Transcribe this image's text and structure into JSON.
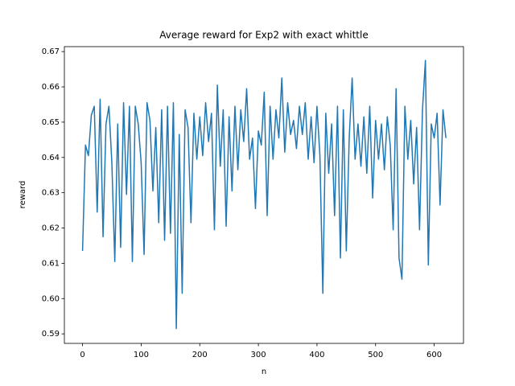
{
  "chart_data": {
    "type": "line",
    "title": "Average reward for Exp2 with exact whittle",
    "xlabel": "n",
    "ylabel": "reward",
    "x": [
      0,
      5,
      10,
      15,
      20,
      25,
      30,
      35,
      40,
      45,
      50,
      55,
      60,
      65,
      70,
      75,
      80,
      85,
      90,
      95,
      100,
      105,
      110,
      115,
      120,
      125,
      130,
      135,
      140,
      145,
      150,
      155,
      160,
      165,
      170,
      175,
      180,
      185,
      190,
      195,
      200,
      205,
      210,
      215,
      220,
      225,
      230,
      235,
      240,
      245,
      250,
      255,
      260,
      265,
      270,
      275,
      280,
      285,
      290,
      295,
      300,
      305,
      310,
      315,
      320,
      325,
      330,
      335,
      340,
      345,
      350,
      355,
      360,
      365,
      370,
      375,
      380,
      385,
      390,
      395,
      400,
      405,
      410,
      415,
      420,
      425,
      430,
      435,
      440,
      445,
      450,
      455,
      460,
      465,
      470,
      475,
      480,
      485,
      490,
      495,
      500,
      505,
      510,
      515,
      520,
      525,
      530,
      535,
      540,
      545,
      550,
      555,
      560,
      565,
      570,
      575,
      580,
      585,
      590,
      595,
      600,
      605,
      610,
      615,
      620
    ],
    "series": [
      {
        "name": "reward",
        "color": "#1f77b4",
        "values": [
          0.6135,
          0.6435,
          0.6405,
          0.652,
          0.6545,
          0.6245,
          0.6565,
          0.6175,
          0.6495,
          0.6545,
          0.6385,
          0.6105,
          0.6495,
          0.6145,
          0.6555,
          0.6295,
          0.6545,
          0.6105,
          0.6545,
          0.6495,
          0.6385,
          0.6125,
          0.6555,
          0.6505,
          0.6305,
          0.6485,
          0.6215,
          0.6535,
          0.6165,
          0.6545,
          0.6185,
          0.6555,
          0.5915,
          0.6465,
          0.6015,
          0.6535,
          0.6485,
          0.6215,
          0.6525,
          0.6395,
          0.6515,
          0.6405,
          0.6555,
          0.6445,
          0.6525,
          0.6195,
          0.6605,
          0.6375,
          0.6535,
          0.6205,
          0.6515,
          0.6305,
          0.6545,
          0.6365,
          0.6535,
          0.6445,
          0.6595,
          0.6395,
          0.6455,
          0.6255,
          0.6475,
          0.6435,
          0.6585,
          0.6235,
          0.6545,
          0.6395,
          0.6535,
          0.6455,
          0.6625,
          0.6415,
          0.6555,
          0.6465,
          0.6505,
          0.6425,
          0.6545,
          0.6465,
          0.6555,
          0.6395,
          0.6515,
          0.6385,
          0.6545,
          0.6405,
          0.6015,
          0.6525,
          0.6355,
          0.6495,
          0.6235,
          0.6545,
          0.6115,
          0.6535,
          0.6135,
          0.6455,
          0.6625,
          0.6395,
          0.6495,
          0.6375,
          0.6515,
          0.6355,
          0.6545,
          0.6285,
          0.6505,
          0.6395,
          0.6495,
          0.6365,
          0.6515,
          0.6435,
          0.6195,
          0.6595,
          0.6115,
          0.6055,
          0.6545,
          0.6395,
          0.6505,
          0.6325,
          0.6485,
          0.6195,
          0.6535,
          0.6675,
          0.6095,
          0.6495,
          0.6455,
          0.6525,
          0.6265,
          0.6535,
          0.6455
        ]
      }
    ],
    "xlim": [
      -31,
      650
    ],
    "ylim": [
      0.5873,
      0.6714
    ],
    "xticks": [
      0,
      100,
      200,
      300,
      400,
      500,
      600
    ],
    "yticks": [
      {
        "value": 0.59,
        "label": "0.59"
      },
      {
        "value": 0.6,
        "label": "0.60"
      },
      {
        "value": 0.61,
        "label": "0.61"
      },
      {
        "value": 0.62,
        "label": "0.62"
      },
      {
        "value": 0.63,
        "label": "0.63"
      },
      {
        "value": 0.64,
        "label": "0.64"
      },
      {
        "value": 0.65,
        "label": "0.65"
      },
      {
        "value": 0.66,
        "label": "0.66"
      },
      {
        "value": 0.67,
        "label": "0.67"
      }
    ],
    "grid": false
  }
}
